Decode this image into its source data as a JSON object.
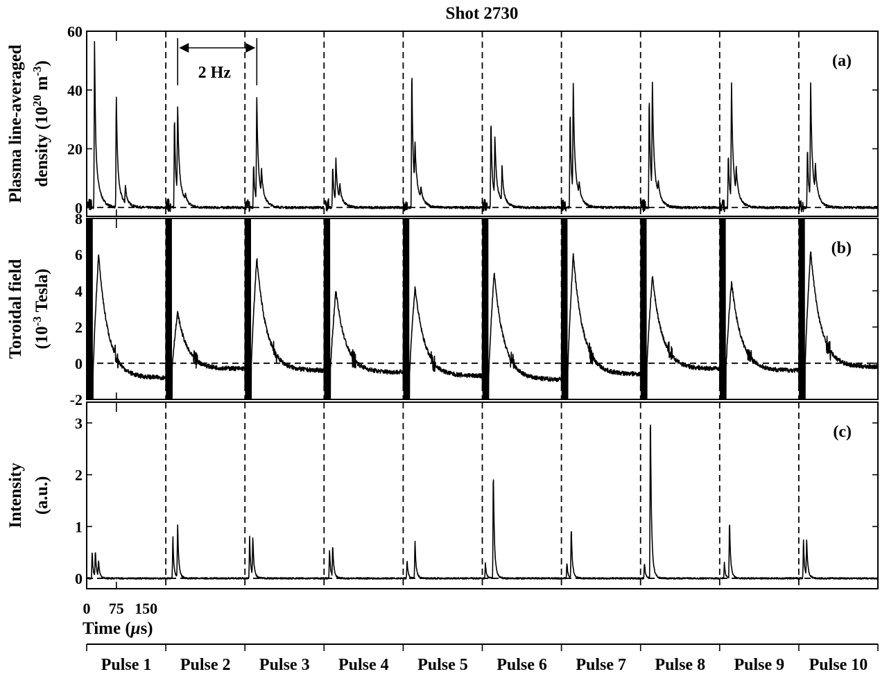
{
  "chart_data": {
    "type": "line",
    "title": "Shot 2730",
    "pulses": [
      "Pulse 1",
      "Pulse 2",
      "Pulse 3",
      "Pulse 4",
      "Pulse 5",
      "Pulse 6",
      "Pulse 7",
      "Pulse 8",
      "Pulse 9",
      "Pulse 10"
    ],
    "pulse_duration_us": 200,
    "x_axis": {
      "label_prefix": "Time (",
      "label_mu": "μ",
      "label_suffix": "s)",
      "ticks": [
        0,
        75,
        150
      ],
      "tick_labels": [
        "0",
        "75",
        "150"
      ]
    },
    "annotation": {
      "text": "2 Hz",
      "from_pulse_boundary": 1.15,
      "to_pulse_boundary": 2.15
    },
    "panels": [
      {
        "id": "a",
        "label": "(a)",
        "ylabel_line1": "Plasma line-averaged",
        "ylabel_line2_prefix": "density (10",
        "ylabel_line2_sup1": "20",
        "ylabel_line2_mid": " m",
        "ylabel_line2_sup2": "-3",
        "ylabel_line2_suffix": ")",
        "ylim": [
          -3,
          60
        ],
        "yticks": [
          0,
          20,
          40,
          60
        ],
        "ytick_labels": [
          "0",
          "20",
          "40",
          "60"
        ],
        "zero_line": 0,
        "peaks": [
          [
            [
              20,
              58
            ],
            [
              75,
              37
            ],
            [
              98,
              6
            ]
          ],
          [
            [
              22,
              31
            ],
            [
              30,
              29
            ],
            [
              50,
              2
            ]
          ],
          [
            [
              22,
              15
            ],
            [
              30,
              35
            ],
            [
              42,
              8
            ]
          ],
          [
            [
              22,
              14
            ],
            [
              30,
              14
            ],
            [
              40,
              5
            ]
          ],
          [
            [
              22,
              47
            ],
            [
              30,
              14
            ],
            [
              45,
              4
            ]
          ],
          [
            [
              22,
              30
            ],
            [
              32,
              20
            ],
            [
              50,
              12
            ]
          ],
          [
            [
              22,
              33
            ],
            [
              30,
              36
            ],
            [
              45,
              4
            ]
          ],
          [
            [
              22,
              38
            ],
            [
              30,
              36
            ],
            [
              45,
              4
            ]
          ],
          [
            [
              22,
              18
            ],
            [
              30,
              39
            ],
            [
              42,
              8
            ]
          ],
          [
            [
              22,
              20
            ],
            [
              30,
              39
            ],
            [
              42,
              9
            ]
          ]
        ]
      },
      {
        "id": "b",
        "label": "(b)",
        "ylabel_line1": "Toroidal field",
        "ylabel_line2_prefix": "(10",
        "ylabel_line2_sup1": "-3",
        "ylabel_line2_mid": " Tesla)",
        "ylabel_line2_sup2": "",
        "ylabel_line2_suffix": "",
        "ylim": [
          -2,
          8
        ],
        "yticks": [
          -2,
          0,
          2,
          4,
          6,
          8
        ],
        "ytick_labels": [
          "-2",
          "0",
          "2",
          "4",
          "6",
          "8"
        ],
        "zero_line": 0,
        "peaks": [
          [
            [
              30,
              6.0
            ]
          ],
          [
            [
              30,
              2.8
            ]
          ],
          [
            [
              30,
              5.8
            ]
          ],
          [
            [
              30,
              4.0
            ]
          ],
          [
            [
              30,
              4.2
            ]
          ],
          [
            [
              30,
              5.0
            ]
          ],
          [
            [
              30,
              6.0
            ]
          ],
          [
            [
              30,
              4.8
            ]
          ],
          [
            [
              30,
              4.5
            ]
          ],
          [
            [
              30,
              6.2
            ]
          ]
        ],
        "baselines": [
          -0.8,
          -0.3,
          -0.4,
          -0.5,
          -0.7,
          -0.9,
          -0.6,
          -0.3,
          -0.4,
          -0.2
        ]
      },
      {
        "id": "c",
        "label": "(c)",
        "ylabel_line1": "Intensity",
        "ylabel_line2_prefix": "(a.u.)",
        "ylabel_line2_sup1": "",
        "ylabel_line2_mid": "",
        "ylabel_line2_sup2": "",
        "ylabel_line2_suffix": "",
        "ylim": [
          -0.2,
          3.4
        ],
        "yticks": [
          0,
          1,
          2,
          3
        ],
        "ytick_labels": [
          "0",
          "1",
          "2",
          "3"
        ],
        "zero_line": 0,
        "peaks": [
          [
            [
              14,
              0.5
            ],
            [
              22,
              0.5
            ],
            [
              30,
              0.3
            ]
          ],
          [
            [
              18,
              0.8
            ],
            [
              30,
              1.0
            ]
          ],
          [
            [
              12,
              0.8
            ],
            [
              20,
              0.75
            ]
          ],
          [
            [
              14,
              0.55
            ],
            [
              22,
              0.6
            ]
          ],
          [
            [
              10,
              0.35
            ],
            [
              30,
              0.7
            ]
          ],
          [
            [
              8,
              0.3
            ],
            [
              28,
              2.05
            ]
          ],
          [
            [
              14,
              0.3
            ],
            [
              25,
              0.95
            ]
          ],
          [
            [
              10,
              0.3
            ],
            [
              25,
              3.2
            ]
          ],
          [
            [
              12,
              0.3
            ],
            [
              25,
              1.1
            ]
          ],
          [
            [
              12,
              0.75
            ],
            [
              20,
              0.7
            ]
          ]
        ]
      }
    ]
  }
}
